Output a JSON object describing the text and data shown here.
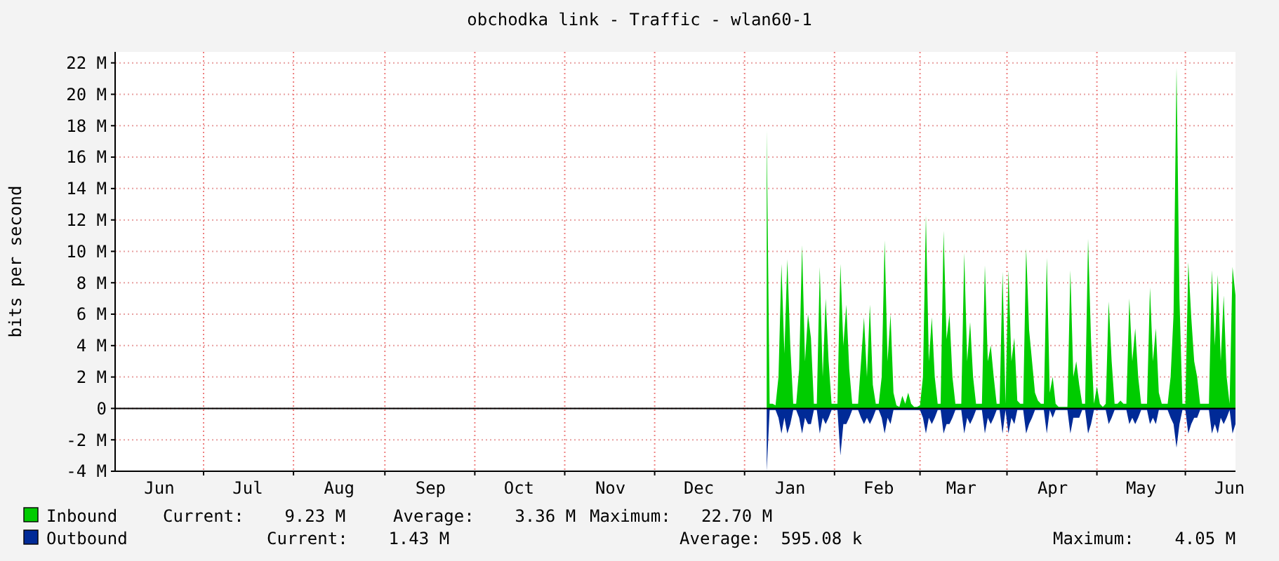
{
  "chart_data": {
    "type": "area",
    "title": "obchodka link - Traffic - wlan60-1",
    "ylabel": "bits per second",
    "categories": [
      null,
      null,
      null,
      null,
      null,
      null,
      null,
      null,
      null,
      null,
      null,
      null,
      null,
      null,
      null,
      "Jun",
      null,
      null,
      null,
      null,
      null,
      null,
      null,
      null,
      null,
      null,
      null,
      null,
      null,
      null,
      null,
      null,
      null,
      null,
      null,
      null,
      null,
      null,
      null,
      null,
      null,
      null,
      null,
      null,
      null,
      "Jul",
      null,
      null,
      null,
      null,
      null,
      null,
      null,
      null,
      null,
      null,
      null,
      null,
      null,
      null,
      null,
      null,
      null,
      null,
      null,
      null,
      null,
      null,
      null,
      null,
      null,
      null,
      null,
      null,
      null,
      null,
      "Aug",
      null,
      null,
      null,
      null,
      null,
      null,
      null,
      null,
      null,
      null,
      null,
      null,
      null,
      null,
      null,
      null,
      null,
      null,
      null,
      null,
      null,
      null,
      null,
      null,
      null,
      null,
      null,
      null,
      null,
      null,
      "Sep",
      null,
      null,
      null,
      null,
      null,
      null,
      null,
      null,
      null,
      null,
      null,
      null,
      null,
      null,
      null,
      null,
      null,
      null,
      null,
      null,
      null,
      null,
      null,
      null,
      null,
      null,
      null,
      null,
      null,
      "Oct",
      null,
      null,
      null,
      null,
      null,
      null,
      null,
      null,
      null,
      null,
      null,
      null,
      null,
      null,
      null,
      null,
      null,
      null,
      null,
      null,
      null,
      null,
      null,
      null,
      null,
      null,
      null,
      null,
      null,
      null,
      "Nov",
      null,
      null,
      null,
      null,
      null,
      null,
      null,
      null,
      null,
      null,
      null,
      null,
      null,
      null,
      null,
      null,
      null,
      null,
      null,
      null,
      null,
      null,
      null,
      null,
      null,
      null,
      null,
      null,
      null,
      "Dec",
      null,
      null,
      null,
      null,
      null,
      null,
      null,
      null,
      null,
      null,
      null,
      null,
      null,
      null,
      null,
      null,
      null,
      null,
      null,
      null,
      null,
      null,
      null,
      null,
      null,
      null,
      null,
      null,
      null,
      null,
      "Jan",
      null,
      null,
      null,
      null,
      null,
      null,
      null,
      null,
      null,
      null,
      null,
      null,
      null,
      null,
      null,
      null,
      null,
      null,
      null,
      null,
      null,
      null,
      null,
      null,
      null,
      null,
      null,
      null,
      null,
      "Feb",
      null,
      null,
      null,
      null,
      null,
      null,
      null,
      null,
      null,
      null,
      null,
      null,
      null,
      null,
      null,
      null,
      null,
      null,
      null,
      null,
      null,
      null,
      null,
      null,
      null,
      null,
      null,
      "Mar",
      null,
      null,
      null,
      null,
      null,
      null,
      null,
      null,
      null,
      null,
      null,
      null,
      null,
      null,
      null,
      null,
      null,
      null,
      null,
      null,
      null,
      null,
      null,
      null,
      null,
      null,
      null,
      null,
      null,
      null,
      "Apr",
      null,
      null,
      null,
      null,
      null,
      null,
      null,
      null,
      null,
      null,
      null,
      null,
      null,
      null,
      null,
      null,
      null,
      null,
      null,
      null,
      null,
      null,
      null,
      null,
      null,
      null,
      null,
      null,
      null,
      "May",
      null,
      null,
      null,
      null,
      null,
      null,
      null,
      null,
      null,
      null,
      null,
      null,
      null,
      null,
      null,
      null,
      null,
      null,
      null,
      null,
      null,
      null,
      null,
      null,
      null,
      null,
      null,
      null,
      null,
      "Jun",
      null,
      null
    ],
    "series": [
      {
        "name": "Inbound",
        "color": "#00cc00",
        "values": [
          null,
          null,
          null,
          null,
          null,
          null,
          null,
          null,
          null,
          null,
          null,
          null,
          null,
          null,
          null,
          null,
          null,
          null,
          null,
          null,
          null,
          null,
          null,
          null,
          null,
          null,
          null,
          null,
          null,
          null,
          null,
          null,
          null,
          null,
          null,
          null,
          null,
          null,
          null,
          null,
          null,
          null,
          null,
          null,
          null,
          null,
          null,
          null,
          null,
          null,
          null,
          null,
          null,
          null,
          null,
          null,
          null,
          null,
          null,
          null,
          null,
          null,
          null,
          null,
          null,
          null,
          null,
          null,
          null,
          null,
          null,
          null,
          null,
          null,
          null,
          null,
          null,
          null,
          null,
          null,
          null,
          null,
          null,
          null,
          null,
          null,
          null,
          null,
          null,
          null,
          null,
          null,
          null,
          null,
          null,
          null,
          null,
          null,
          null,
          null,
          null,
          null,
          null,
          null,
          null,
          null,
          null,
          null,
          null,
          null,
          null,
          null,
          null,
          null,
          null,
          null,
          null,
          null,
          null,
          null,
          null,
          null,
          null,
          null,
          null,
          null,
          null,
          null,
          null,
          null,
          null,
          null,
          null,
          null,
          null,
          null,
          null,
          null,
          null,
          null,
          null,
          null,
          null,
          null,
          null,
          null,
          null,
          null,
          null,
          null,
          null,
          null,
          null,
          null,
          null,
          null,
          null,
          null,
          null,
          null,
          null,
          null,
          null,
          null,
          null,
          null,
          null,
          null,
          null,
          null,
          null,
          null,
          null,
          null,
          null,
          null,
          null,
          null,
          null,
          null,
          null,
          null,
          null,
          null,
          null,
          null,
          null,
          null,
          null,
          null,
          null,
          null,
          null,
          null,
          null,
          null,
          null,
          null,
          null,
          null,
          null,
          null,
          null,
          null,
          null,
          null,
          null,
          null,
          null,
          null,
          null,
          null,
          null,
          null,
          null,
          null,
          null,
          null,
          null,
          null,
          null,
          17.7,
          0.3,
          0.3,
          0.2,
          2.0,
          9.2,
          3.5,
          9.5,
          4.0,
          0.3,
          0.3,
          2.5,
          10.4,
          3.0,
          6.0,
          4.5,
          0.3,
          0.3,
          9.0,
          2.0,
          7.0,
          3.0,
          0.3,
          0.3,
          0.3,
          9.2,
          4.0,
          6.6,
          2.5,
          0.3,
          0.3,
          0.3,
          3.0,
          5.8,
          2.0,
          6.6,
          1.5,
          0.3,
          0.3,
          2.0,
          10.7,
          3.0,
          6.0,
          1.0,
          0.2,
          0.1,
          0.8,
          0.3,
          1.0,
          0.3,
          0.1,
          0.1,
          0.2,
          2.0,
          12.3,
          3.0,
          5.8,
          2.0,
          0.3,
          0.3,
          11.3,
          4.4,
          6.0,
          2.0,
          0.3,
          0.3,
          0.3,
          9.9,
          3.0,
          5.5,
          2.0,
          0.3,
          0.3,
          0.3,
          9.1,
          3.0,
          4.0,
          2.0,
          0.3,
          0.3,
          8.7,
          0.3,
          8.8,
          3.0,
          4.5,
          0.5,
          0.3,
          0.3,
          10.2,
          5.0,
          3.0,
          1.0,
          0.5,
          0.3,
          0.3,
          9.6,
          1.0,
          2.0,
          0.3,
          0.1,
          0.1,
          0.1,
          0.1,
          8.8,
          2.0,
          3.0,
          1.5,
          0.3,
          0.3,
          10.8,
          4.4,
          0.3,
          1.4,
          0.3,
          0.1,
          0.3,
          6.8,
          3.0,
          0.3,
          0.3,
          0.5,
          0.3,
          0.3,
          7.0,
          3.0,
          5.1,
          2.0,
          0.3,
          0.3,
          0.3,
          7.7,
          3.0,
          5.1,
          1.0,
          0.3,
          0.3,
          0.3,
          2.0,
          6.0,
          21.7,
          7.0,
          0.3,
          0.3,
          9.3,
          5.8,
          3.0,
          2.0,
          0.3,
          0.3,
          0.3,
          0.3,
          8.8,
          4.0,
          8.5,
          3.0,
          7.2,
          2.0,
          0.3,
          9.0,
          7.2
        ]
      },
      {
        "name": "Outbound",
        "color": "#002a97",
        "values": [
          null,
          null,
          null,
          null,
          null,
          null,
          null,
          null,
          null,
          null,
          null,
          null,
          null,
          null,
          null,
          null,
          null,
          null,
          null,
          null,
          null,
          null,
          null,
          null,
          null,
          null,
          null,
          null,
          null,
          null,
          null,
          null,
          null,
          null,
          null,
          null,
          null,
          null,
          null,
          null,
          null,
          null,
          null,
          null,
          null,
          null,
          null,
          null,
          null,
          null,
          null,
          null,
          null,
          null,
          null,
          null,
          null,
          null,
          null,
          null,
          null,
          null,
          null,
          null,
          null,
          null,
          null,
          null,
          null,
          null,
          null,
          null,
          null,
          null,
          null,
          null,
          null,
          null,
          null,
          null,
          null,
          null,
          null,
          null,
          null,
          null,
          null,
          null,
          null,
          null,
          null,
          null,
          null,
          null,
          null,
          null,
          null,
          null,
          null,
          null,
          null,
          null,
          null,
          null,
          null,
          null,
          null,
          null,
          null,
          null,
          null,
          null,
          null,
          null,
          null,
          null,
          null,
          null,
          null,
          null,
          null,
          null,
          null,
          null,
          null,
          null,
          null,
          null,
          null,
          null,
          null,
          null,
          null,
          null,
          null,
          null,
          null,
          null,
          null,
          null,
          null,
          null,
          null,
          null,
          null,
          null,
          null,
          null,
          null,
          null,
          null,
          null,
          null,
          null,
          null,
          null,
          null,
          null,
          null,
          null,
          null,
          null,
          null,
          null,
          null,
          null,
          null,
          null,
          null,
          null,
          null,
          null,
          null,
          null,
          null,
          null,
          null,
          null,
          null,
          null,
          null,
          null,
          null,
          null,
          null,
          null,
          null,
          null,
          null,
          null,
          null,
          null,
          null,
          null,
          null,
          null,
          null,
          null,
          null,
          null,
          null,
          null,
          null,
          null,
          null,
          null,
          null,
          null,
          null,
          null,
          null,
          null,
          null,
          null,
          null,
          null,
          null,
          null,
          null,
          null,
          null,
          -4.0,
          -0.1,
          -0.1,
          -0.1,
          -0.6,
          -1.6,
          -0.6,
          -1.6,
          -1.0,
          -0.1,
          -0.1,
          -0.6,
          -1.6,
          -0.6,
          -1.0,
          -1.0,
          -0.1,
          -0.1,
          -1.6,
          -0.6,
          -1.0,
          -0.6,
          -0.1,
          -0.1,
          -0.1,
          -3.0,
          -1.0,
          -1.0,
          -0.6,
          -0.1,
          -0.1,
          -0.1,
          -0.6,
          -1.0,
          -0.6,
          -1.0,
          -0.6,
          -0.1,
          -0.1,
          -0.6,
          -1.6,
          -0.6,
          -1.0,
          -0.1,
          -0.1,
          -0.1,
          -0.1,
          -0.1,
          -0.1,
          -0.1,
          -0.1,
          -0.1,
          -0.1,
          -0.6,
          -1.6,
          -0.6,
          -1.0,
          -0.6,
          -0.1,
          -0.1,
          -1.6,
          -1.0,
          -1.0,
          -0.6,
          -0.1,
          -0.1,
          -0.1,
          -1.6,
          -0.6,
          -1.0,
          -0.6,
          -0.1,
          -0.1,
          -0.1,
          -1.6,
          -0.6,
          -1.0,
          -0.6,
          -0.1,
          -0.1,
          -1.6,
          -0.1,
          -1.6,
          -0.6,
          -1.0,
          -0.1,
          -0.1,
          -0.1,
          -1.6,
          -1.0,
          -0.6,
          -0.1,
          -0.1,
          -0.1,
          -0.1,
          -1.6,
          -0.1,
          -0.6,
          -0.1,
          -0.1,
          -0.1,
          -0.1,
          -0.1,
          -1.6,
          -0.6,
          -0.6,
          -0.6,
          -0.1,
          -0.1,
          -1.6,
          -1.0,
          -0.1,
          -0.1,
          -0.1,
          -0.1,
          -0.1,
          -1.0,
          -0.6,
          -0.1,
          -0.1,
          -0.1,
          -0.1,
          -0.1,
          -1.0,
          -0.6,
          -1.0,
          -0.6,
          -0.1,
          -0.1,
          -0.1,
          -1.0,
          -0.6,
          -1.0,
          -0.1,
          -0.1,
          -0.1,
          -0.1,
          -0.6,
          -1.0,
          -2.5,
          -1.0,
          -0.1,
          -0.1,
          -1.6,
          -1.0,
          -0.6,
          -0.6,
          -0.1,
          -0.1,
          -0.1,
          -0.1,
          -1.6,
          -1.0,
          -1.6,
          -0.6,
          -1.0,
          -0.6,
          -0.1,
          -1.6,
          -1.0
        ]
      }
    ],
    "ylim": [
      -4,
      22.7
    ],
    "yticks": [
      {
        "value": -4,
        "label": "-4 M"
      },
      {
        "value": -2,
        "label": "-2 M"
      },
      {
        "value": 0,
        "label": "0"
      },
      {
        "value": 2,
        "label": "2 M"
      },
      {
        "value": 4,
        "label": "4 M"
      },
      {
        "value": 6,
        "label": "6 M"
      },
      {
        "value": 8,
        "label": "8 M"
      },
      {
        "value": 10,
        "label": "10 M"
      },
      {
        "value": 12,
        "label": "12 M"
      },
      {
        "value": 14,
        "label": "14 M"
      },
      {
        "value": 16,
        "label": "16 M"
      },
      {
        "value": 18,
        "label": "18 M"
      },
      {
        "value": 20,
        "label": "20 M"
      },
      {
        "value": 22,
        "label": "22 M"
      }
    ],
    "grid": true,
    "legend": "bottom",
    "annotations": [
      "Current:    9.23 M",
      "Average:    3.36 M",
      "Maximum:   22.70 M",
      "Current:    1.43 M",
      "Average:  595.08 k",
      "Maximum:    4.05 M"
    ]
  }
}
